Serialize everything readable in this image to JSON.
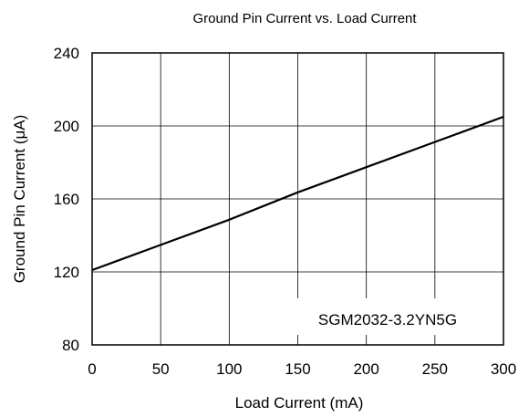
{
  "chart_data": {
    "type": "line",
    "title": "Ground Pin Current vs. Load Current",
    "xlabel": "Load Current (mA)",
    "ylabel": "Ground Pin Current (μA)",
    "xlim": [
      0,
      300
    ],
    "ylim": [
      80,
      240
    ],
    "x_ticks": [
      0,
      50,
      100,
      150,
      200,
      250,
      300
    ],
    "y_ticks": [
      80,
      120,
      160,
      200,
      240
    ],
    "x_tick_labels": [
      "0",
      "50",
      "100",
      "150",
      "200",
      "250",
      "300"
    ],
    "y_tick_labels": [
      "80",
      "120",
      "160",
      "200",
      "240"
    ],
    "grid": true,
    "series": [
      {
        "x": [
          0,
          50,
          100,
          150,
          200,
          250,
          300
        ],
        "y": [
          121,
          134.8,
          148.6,
          163.6,
          177.4,
          191.2,
          205
        ],
        "color": "#000000"
      }
    ],
    "annotation": "SGM2032-3.2YN5G"
  }
}
